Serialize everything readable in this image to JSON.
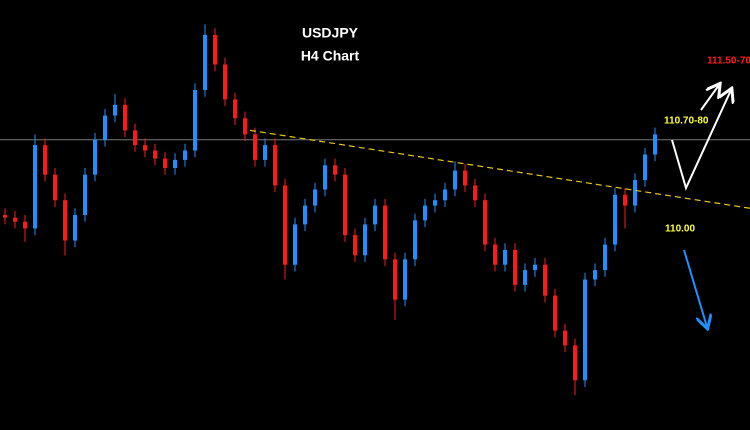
{
  "chart_data": {
    "type": "candlestick",
    "title": "USDJPY",
    "subtitle": "H4 Chart",
    "ylim": [
      108.6,
      111.8
    ],
    "up_color": "#1e90ff",
    "down_color": "#ff1a1a",
    "open": [
      110.2,
      110.18,
      110.15,
      110.1,
      110.72,
      110.5,
      110.31,
      110.01,
      110.2,
      110.5,
      110.76,
      110.94,
      111.02,
      110.83,
      110.72,
      110.68,
      110.62,
      110.55,
      110.61,
      110.68,
      111.13,
      111.54,
      111.32,
      111.06,
      110.92,
      110.8,
      110.61,
      110.72,
      110.42,
      109.83,
      110.13,
      110.27,
      110.39,
      110.57,
      110.5,
      110.05,
      109.9,
      110.13,
      110.27,
      109.87,
      109.57,
      109.87,
      110.16,
      110.27,
      110.31,
      110.39,
      110.53,
      110.42,
      110.31,
      109.98,
      109.83,
      109.94,
      109.68,
      109.79,
      109.83,
      109.6,
      109.34,
      109.23,
      108.97,
      109.72,
      109.79,
      109.98,
      110.35,
      110.27,
      110.46,
      110.65
    ],
    "high": [
      110.25,
      110.23,
      110.2,
      110.8,
      110.77,
      110.55,
      110.36,
      110.25,
      110.55,
      110.81,
      110.99,
      111.1,
      111.07,
      110.88,
      110.77,
      110.73,
      110.67,
      110.66,
      110.73,
      111.18,
      111.62,
      111.59,
      111.37,
      111.11,
      110.97,
      110.85,
      110.77,
      110.77,
      110.47,
      110.18,
      110.32,
      110.44,
      110.62,
      110.62,
      110.55,
      110.1,
      110.18,
      110.32,
      110.32,
      109.92,
      109.92,
      110.21,
      110.32,
      110.36,
      110.44,
      110.6,
      110.58,
      110.47,
      110.36,
      110.03,
      109.99,
      109.99,
      109.84,
      109.88,
      109.88,
      109.65,
      109.39,
      109.28,
      109.77,
      109.84,
      110.03,
      110.4,
      110.4,
      110.51,
      110.7,
      110.85
    ],
    "low": [
      110.13,
      110.1,
      110.0,
      110.05,
      110.45,
      110.26,
      109.9,
      109.96,
      110.15,
      110.45,
      110.71,
      110.89,
      110.78,
      110.67,
      110.63,
      110.57,
      110.5,
      110.5,
      110.56,
      110.63,
      111.08,
      111.27,
      111.01,
      110.87,
      110.75,
      110.56,
      110.56,
      110.37,
      109.72,
      109.78,
      110.08,
      110.22,
      110.34,
      110.45,
      110.0,
      109.85,
      109.85,
      110.08,
      109.82,
      109.42,
      109.52,
      109.82,
      110.11,
      110.22,
      110.26,
      110.34,
      110.37,
      110.26,
      109.93,
      109.78,
      109.78,
      109.63,
      109.63,
      109.74,
      109.55,
      109.29,
      109.18,
      108.86,
      108.92,
      109.67,
      109.74,
      109.93,
      110.1,
      110.22,
      110.41,
      110.6
    ],
    "close": [
      110.18,
      110.15,
      110.1,
      110.72,
      110.5,
      110.31,
      110.01,
      110.2,
      110.5,
      110.76,
      110.94,
      111.02,
      110.83,
      110.72,
      110.68,
      110.62,
      110.55,
      110.61,
      110.68,
      111.13,
      111.54,
      111.32,
      111.06,
      110.92,
      110.8,
      110.61,
      110.72,
      110.42,
      109.83,
      110.13,
      110.27,
      110.39,
      110.57,
      110.5,
      110.05,
      109.9,
      110.13,
      110.27,
      109.87,
      109.57,
      109.87,
      110.16,
      110.27,
      110.31,
      110.39,
      110.53,
      110.42,
      110.31,
      109.98,
      109.83,
      109.94,
      109.68,
      109.79,
      109.83,
      109.6,
      109.34,
      109.23,
      108.97,
      109.72,
      109.79,
      109.98,
      110.35,
      110.27,
      110.46,
      110.65,
      110.8
    ],
    "level": 110.76,
    "trendline": {
      "x": [
        24.5,
        74.5
      ],
      "y": [
        110.83,
        110.25
      ]
    },
    "annotations": [
      {
        "text": "111.50-70",
        "color": "#ff1a1a"
      },
      {
        "text": "110.70-80",
        "color": "#ffff33"
      },
      {
        "text": "110.00",
        "color": "#ffff33"
      }
    ]
  }
}
